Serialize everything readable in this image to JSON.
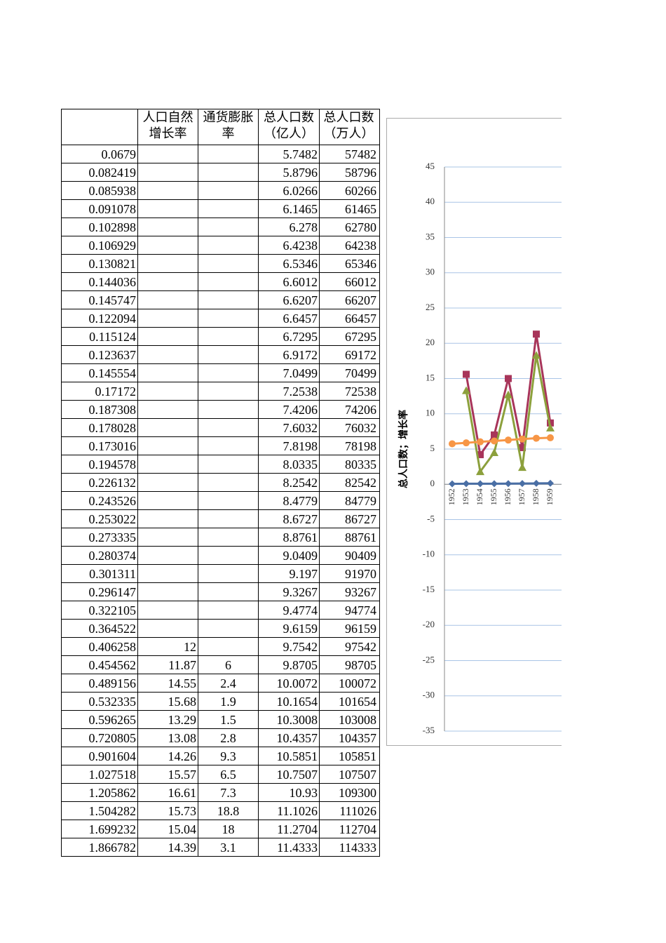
{
  "table": {
    "header": [
      null,
      "人口自然增长率",
      "通货膨胀率",
      "总人口数（亿人）",
      "总人口数（万人）"
    ],
    "rows": [
      [
        "0.0679",
        null,
        null,
        "5.7482",
        "57482"
      ],
      [
        "0.082419",
        null,
        null,
        "5.8796",
        "58796"
      ],
      [
        "0.085938",
        null,
        null,
        "6.0266",
        "60266"
      ],
      [
        "0.091078",
        null,
        null,
        "6.1465",
        "61465"
      ],
      [
        "0.102898",
        null,
        null,
        "6.278",
        "62780"
      ],
      [
        "0.106929",
        null,
        null,
        "6.4238",
        "64238"
      ],
      [
        "0.130821",
        null,
        null,
        "6.5346",
        "65346"
      ],
      [
        "0.144036",
        null,
        null,
        "6.6012",
        "66012"
      ],
      [
        "0.145747",
        null,
        null,
        "6.6207",
        "66207"
      ],
      [
        "0.122094",
        null,
        null,
        "6.6457",
        "66457"
      ],
      [
        "0.115124",
        null,
        null,
        "6.7295",
        "67295"
      ],
      [
        "0.123637",
        null,
        null,
        "6.9172",
        "69172"
      ],
      [
        "0.145554",
        null,
        null,
        "7.0499",
        "70499"
      ],
      [
        "0.17172",
        null,
        null,
        "7.2538",
        "72538"
      ],
      [
        "0.187308",
        null,
        null,
        "7.4206",
        "74206"
      ],
      [
        "0.178028",
        null,
        null,
        "7.6032",
        "76032"
      ],
      [
        "0.173016",
        null,
        null,
        "7.8198",
        "78198"
      ],
      [
        "0.194578",
        null,
        null,
        "8.0335",
        "80335"
      ],
      [
        "0.226132",
        null,
        null,
        "8.2542",
        "82542"
      ],
      [
        "0.243526",
        null,
        null,
        "8.4779",
        "84779"
      ],
      [
        "0.253022",
        null,
        null,
        "8.6727",
        "86727"
      ],
      [
        "0.273335",
        null,
        null,
        "8.8761",
        "88761"
      ],
      [
        "0.280374",
        null,
        null,
        "9.0409",
        "90409"
      ],
      [
        "0.301311",
        null,
        null,
        "9.197",
        "91970"
      ],
      [
        "0.296147",
        null,
        null,
        "9.3267",
        "93267"
      ],
      [
        "0.322105",
        null,
        null,
        "9.4774",
        "94774"
      ],
      [
        "0.364522",
        null,
        null,
        "9.6159",
        "96159"
      ],
      [
        "0.406258",
        "12",
        null,
        "9.7542",
        "97542"
      ],
      [
        "0.454562",
        "11.87",
        "6",
        "9.8705",
        "98705"
      ],
      [
        "0.489156",
        "14.55",
        "2.4",
        "10.0072",
        "100072"
      ],
      [
        "0.532335",
        "15.68",
        "1.9",
        "10.1654",
        "101654"
      ],
      [
        "0.596265",
        "13.29",
        "1.5",
        "10.3008",
        "103008"
      ],
      [
        "0.720805",
        "13.08",
        "2.8",
        "10.4357",
        "104357"
      ],
      [
        "0.901604",
        "14.26",
        "9.3",
        "10.5851",
        "105851"
      ],
      [
        "1.027518",
        "15.57",
        "6.5",
        "10.7507",
        "107507"
      ],
      [
        "1.205862",
        "16.61",
        "7.3",
        "10.93",
        "109300"
      ],
      [
        "1.504282",
        "15.73",
        "18.8",
        "11.1026",
        "111026"
      ],
      [
        "1.699232",
        "15.04",
        "18",
        "11.2704",
        "112704"
      ],
      [
        "1.866782",
        "14.39",
        "3.1",
        "11.4333",
        "114333"
      ]
    ]
  },
  "chart_data": {
    "type": "line",
    "y_label": "总人口数；增长率",
    "categories": [
      "1952",
      "1953",
      "1954",
      "1955",
      "1956",
      "1957",
      "1958",
      "1959"
    ],
    "series": [
      {
        "color": "#4a6fa5",
        "marker": "diamond",
        "values": [
          0.0679,
          0.082419,
          0.085938,
          0.091078,
          0.102898,
          0.106929,
          0.130821,
          0.144036
        ]
      },
      {
        "color": "#a8355a",
        "marker": "square",
        "values": [
          null,
          15.6,
          4.2,
          7.0,
          15.0,
          5.2,
          21.3,
          8.7
        ]
      },
      {
        "color": "#8ca03c",
        "marker": "triangle",
        "values": [
          null,
          13.3,
          1.8,
          4.5,
          12.7,
          2.4,
          18.3,
          8.0
        ]
      },
      {
        "color": "#f79646",
        "marker": "circle",
        "values": [
          5.7482,
          5.8796,
          6.0266,
          6.1465,
          6.278,
          6.4238,
          6.5346,
          6.6012
        ]
      }
    ],
    "ylim": [
      -35,
      45
    ],
    "yticks": [
      -35,
      -30,
      -25,
      -20,
      -15,
      -10,
      -5,
      0,
      5,
      10,
      15,
      20,
      25,
      30,
      35,
      40,
      45
    ],
    "grid": true
  }
}
